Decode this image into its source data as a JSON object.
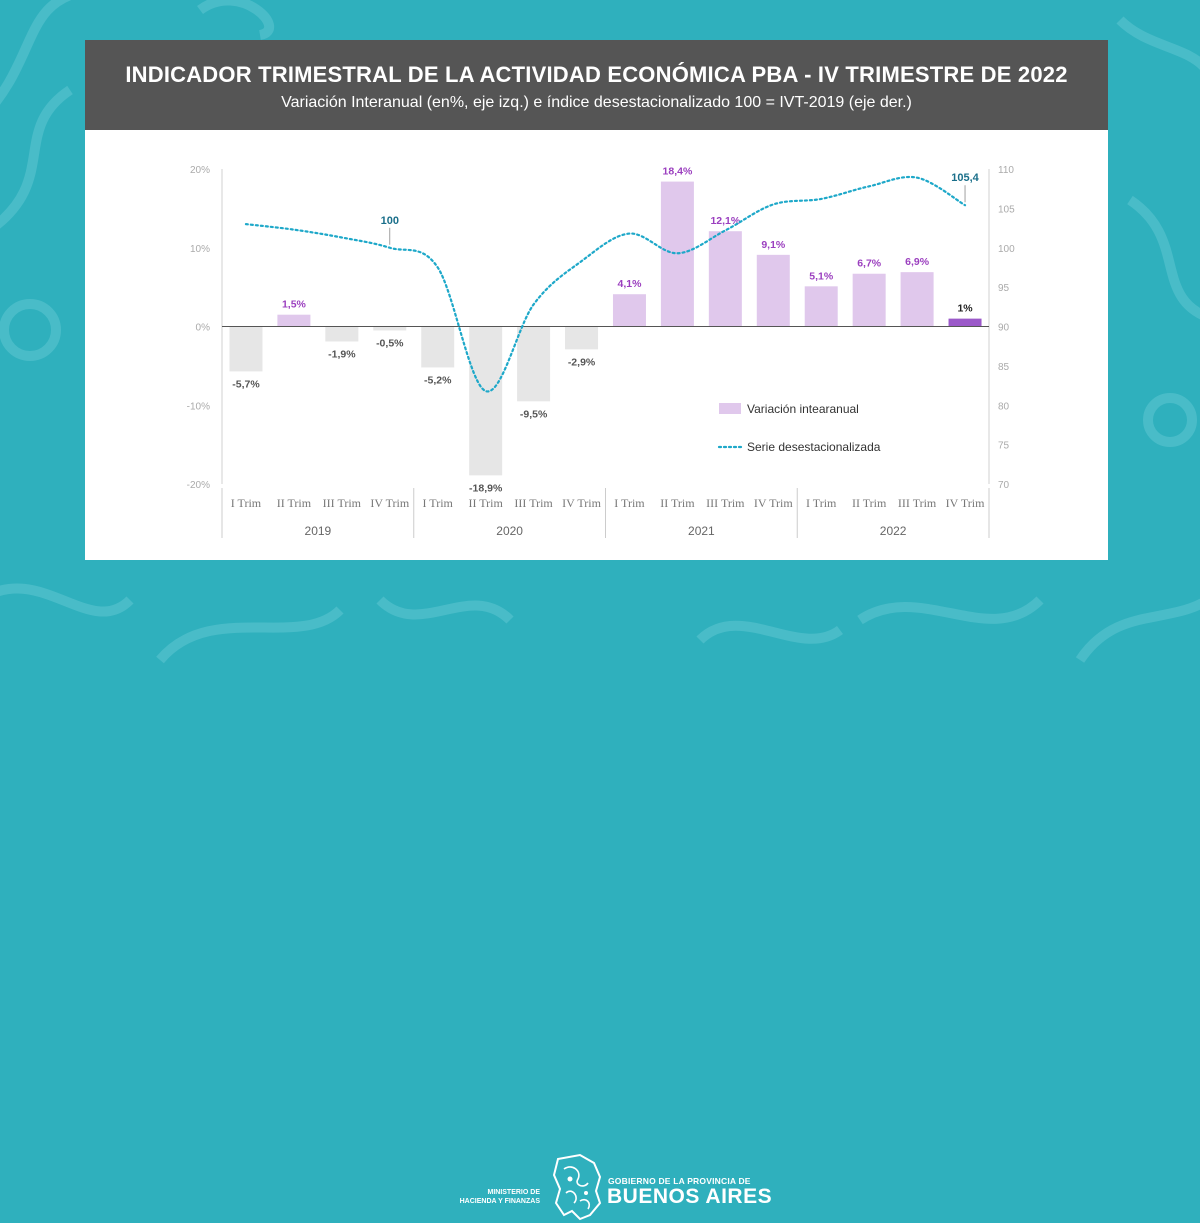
{
  "header": {
    "title": "INDICADOR TRIMESTRAL DE LA ACTIVIDAD ECONÓMICA PBA - IV TRIMESTRE DE 2022",
    "subtitle": "Variación Interanual (en%, eje izq.) e índice desestacionalizado 100 = IVT-2019 (eje der.)"
  },
  "footer": {
    "ministry_line1": "MINISTERIO DE",
    "ministry_line2": "HACIENDA Y FINANZAS",
    "gov_line": "GOBIERNO DE LA PROVINCIA DE",
    "province": "BUENOS AIRES"
  },
  "colors": {
    "background": "#2fb0bd",
    "header": "#555555",
    "bar_positive": "#e0c8ec",
    "bar_negative": "#e6e6e6",
    "bar_highlight": "#9b59c9",
    "label_positive": "#9b3fbf",
    "label_negative": "#555555",
    "line": "#1ea8c9",
    "line_label": "#1a6f8a"
  },
  "chart_data": {
    "type": "bar",
    "title": "INDICADOR TRIMESTRAL DE LA ACTIVIDAD ECONÓMICA PBA - IV TRIMESTRE DE 2022",
    "categories": [
      "I Trim",
      "II Trim",
      "III Trim",
      "IV Trim",
      "I Trim",
      "II Trim",
      "III Trim",
      "IV Trim",
      "I Trim",
      "II Trim",
      "III Trim",
      "IV Trim",
      "I Trim",
      "II Trim",
      "III Trim",
      "IV Trim"
    ],
    "years": [
      "2019",
      "2020",
      "2021",
      "2022"
    ],
    "series": [
      {
        "name": "Variación intearanual",
        "type": "bar",
        "axis": "left",
        "values": [
          -5.7,
          1.5,
          -1.9,
          -0.5,
          -5.2,
          -18.9,
          -9.5,
          -2.9,
          4.1,
          18.4,
          12.1,
          9.1,
          5.1,
          6.7,
          6.9,
          1.0
        ],
        "labels": [
          "-5,7%",
          "1,5%",
          "-1,9%",
          "-0,5%",
          "-5,2%",
          "-18,9%",
          "-9,5%",
          "-2,9%",
          "4,1%",
          "18,4%",
          "12,1%",
          "9,1%",
          "5,1%",
          "6,7%",
          "6,9%",
          "1%"
        ]
      },
      {
        "name": "Serie desestacionalizada",
        "type": "line",
        "axis": "right",
        "values": [
          103.0,
          102.3,
          101.3,
          100.0,
          97.5,
          81.8,
          92.8,
          98.3,
          101.8,
          99.3,
          102.2,
          105.5,
          106.2,
          107.8,
          108.9,
          105.4
        ],
        "annotations": [
          {
            "index": 3,
            "text": "100"
          },
          {
            "index": 15,
            "text": "105,4"
          }
        ]
      }
    ],
    "y_left": {
      "min": -20,
      "max": 20,
      "ticks": [
        "-20%",
        "-10%",
        "0%",
        "10%",
        "20%"
      ]
    },
    "y_right": {
      "min": 70,
      "max": 110,
      "ticks": [
        "70",
        "75",
        "80",
        "85",
        "90",
        "95",
        "100",
        "105",
        "110"
      ]
    },
    "legend": {
      "placement": "bottom-right",
      "bar_label": "Variación intearanual",
      "line_label": "Serie desestacionalizada"
    }
  }
}
